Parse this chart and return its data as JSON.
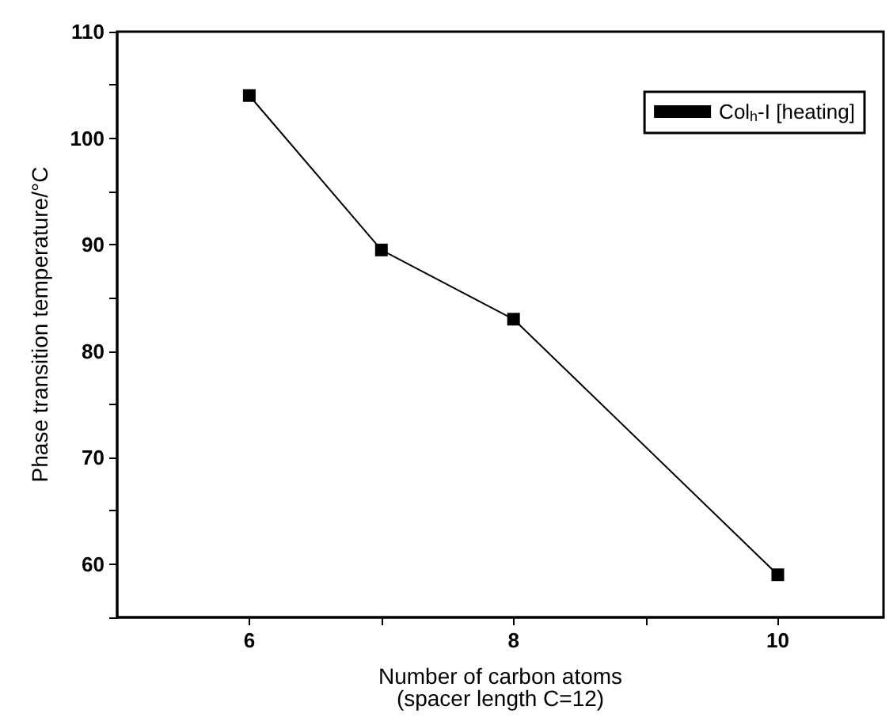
{
  "chart_data": {
    "type": "line",
    "xlabel": "Number of carbon atoms\n(spacer length C=12)",
    "ylabel": "Phase transition temperature/°C",
    "x": [
      6,
      7,
      8,
      10
    ],
    "series": [
      {
        "name": "Col$_{h}$-I [heating]",
        "color": "#000000",
        "values": [
          104,
          89.5,
          83,
          59
        ]
      }
    ],
    "xlim": [
      5,
      10.8
    ],
    "xticks": [
      6,
      {
        "value": 7,
        "label": null
      },
      8,
      {
        "value": 9,
        "label": null
      },
      10
    ],
    "ylim": [
      55,
      110
    ],
    "yticks": [
      {
        "value": 55,
        "label": null
      },
      60,
      {
        "value": 65,
        "label": null
      },
      70,
      {
        "value": 75,
        "label": null
      },
      80,
      {
        "value": 85,
        "label": null
      },
      90,
      {
        "value": 95,
        "label": null
      },
      100,
      {
        "value": 105,
        "label": null
      },
      110
    ],
    "legend": "top right",
    "marker": "square",
    "line_style": "solid",
    "grid": false
  }
}
